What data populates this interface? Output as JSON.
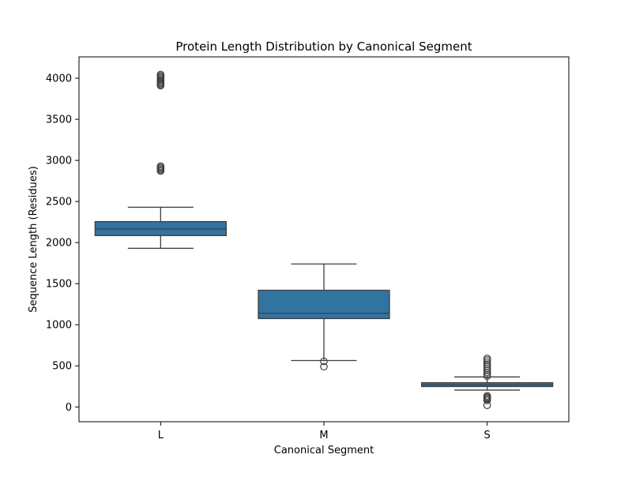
{
  "chart_data": {
    "type": "box",
    "title": "Protein Length Distribution by Canonical Segment",
    "xlabel": "Canonical Segment",
    "ylabel": "Sequence Length (Residues)",
    "ylim": [
      -180,
      4260
    ],
    "yticks": [
      0,
      500,
      1000,
      1500,
      2000,
      2500,
      3000,
      3500,
      4000
    ],
    "categories": [
      "L",
      "M",
      "S"
    ],
    "box_color": "#3274a1",
    "line_color": "#3f3f3f",
    "grid": false,
    "series": [
      {
        "category": "L",
        "whisker_low": 1930,
        "q1": 2085,
        "median": 2165,
        "q3": 2255,
        "whisker_high": 2430,
        "outliers": [
          2870,
          2885,
          2900,
          2915,
          2930,
          3910,
          3925,
          3940,
          3955,
          3970,
          3985,
          4000,
          4015,
          4030,
          4045
        ]
      },
      {
        "category": "M",
        "whisker_low": 565,
        "q1": 1075,
        "median": 1140,
        "q3": 1420,
        "whisker_high": 1740,
        "outliers": [
          490,
          555
        ]
      },
      {
        "category": "S",
        "whisker_low": 205,
        "q1": 248,
        "median": 268,
        "q3": 295,
        "whisker_high": 365,
        "outliers": [
          20,
          80,
          95,
          110,
          120,
          135,
          375,
          395,
          420,
          445,
          470,
          495,
          520,
          545,
          570,
          590
        ]
      }
    ]
  }
}
